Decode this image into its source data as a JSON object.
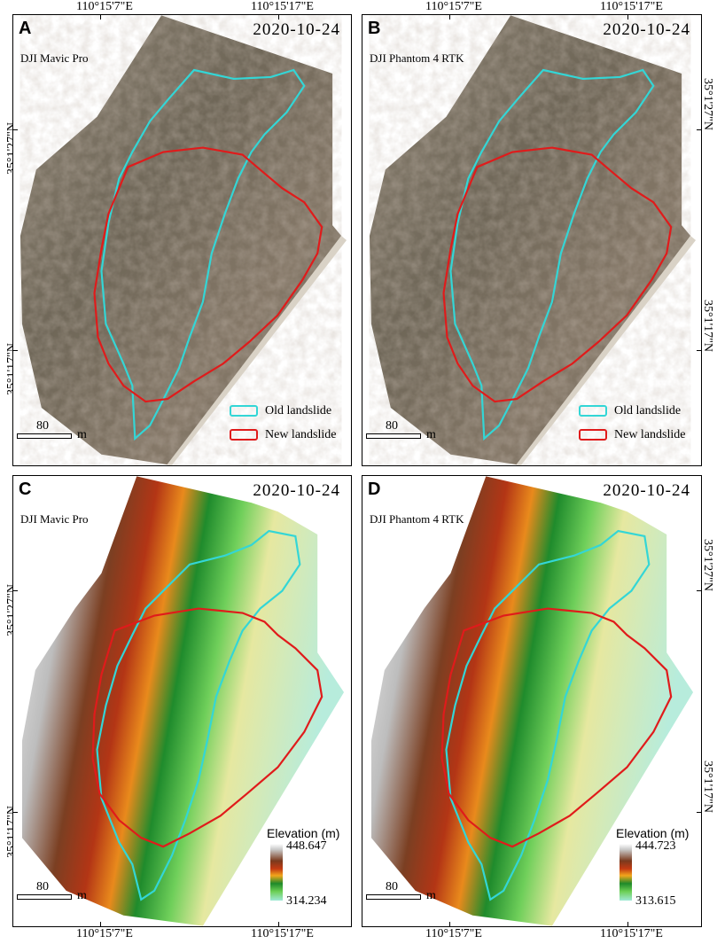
{
  "coords": {
    "lon_left": "110°15'7\"E",
    "lon_right": "110°15'17\"E",
    "lat_upper": "35°1'27\"N",
    "lat_lower": "35°1'17\"N"
  },
  "legend": {
    "old": "Old landslide",
    "new": "New landslide"
  },
  "legend_colors": {
    "old": "#33d6d6",
    "new": "#e01b1b"
  },
  "scale": {
    "value": "80",
    "unit": "m"
  },
  "elevation_title": "Elevation (m)",
  "panels": [
    {
      "letter": "A",
      "date": "2020-10-24",
      "sensor": "DJI Mavic Pro"
    },
    {
      "letter": "B",
      "date": "2020-10-24",
      "sensor": "DJI Phantom 4 RTK"
    },
    {
      "letter": "C",
      "date": "2020-10-24",
      "sensor": "DJI Mavic Pro",
      "elev_max": "448.647",
      "elev_min": "314.234"
    },
    {
      "letter": "D",
      "date": "2020-10-24",
      "sensor": "DJI Phantom 4 RTK",
      "elev_max": "444.723",
      "elev_min": "313.615"
    }
  ]
}
